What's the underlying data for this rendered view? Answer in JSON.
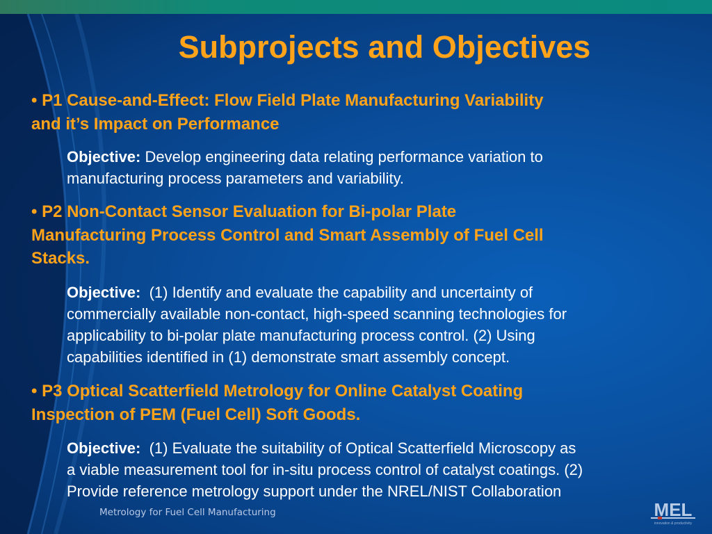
{
  "slide": {
    "title": "Subprojects and Objectives",
    "items": [
      {
        "heading_lines": [
          "• P1 Cause-and-Effect: Flow Field Plate Manufacturing Variability",
          "and it’s Impact on Performance"
        ],
        "objective_label": "Objective:",
        "objective_lines": [
          " Develop engineering data relating performance variation to",
          "manufacturing process parameters and variability."
        ]
      },
      {
        "heading_lines": [
          "• P2 Non-Contact Sensor Evaluation for Bi-polar Plate",
          "Manufacturing Process Control and Smart Assembly of Fuel Cell",
          "Stacks."
        ],
        "objective_label": "Objective:",
        "objective_lines": [
          "  (1) Identify and evaluate the capability and uncertainty of",
          "commercially available non-contact, high-speed scanning technologies for",
          "applicability to bi-polar plate manufacturing process control. (2) Using",
          "capabilities identified in (1) demonstrate smart assembly concept."
        ]
      },
      {
        "heading_lines": [
          "• P3 Optical Scatterfield Metrology for Online Catalyst Coating",
          "Inspection of PEM (Fuel Cell) Soft Goods."
        ],
        "objective_label": "Objective:",
        "objective_lines": [
          "  (1) Evaluate the suitability of Optical Scatterfield Microscopy as",
          "a viable measurement tool for in-situ process control of catalyst coatings. (2)",
          "Provide reference metrology support under the NREL/NIST Collaboration"
        ]
      }
    ],
    "footer": "Metrology for Fuel Cell Manufacturing",
    "logo": {
      "text": "MEL",
      "tagline": "innovation & productivity"
    }
  },
  "colors": {
    "heading": "#ffa31a",
    "body": "#ffffff",
    "background": "#0a4f9e",
    "topbar": "#0a8a80"
  }
}
